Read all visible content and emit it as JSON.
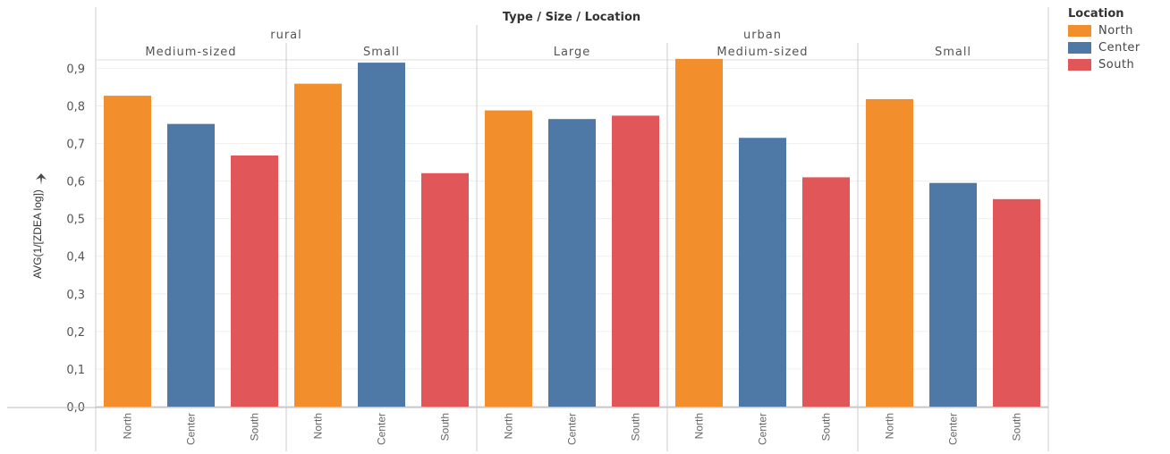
{
  "chart_data": {
    "type": "bar",
    "header_title": "Type / Size / Location",
    "ylabel": "AVG(1/[ZDEA log])",
    "ylabel_icon": "sort-icon",
    "ylim": [
      0,
      0.92
    ],
    "yticks": [
      "0,0",
      "0,1",
      "0,2",
      "0,3",
      "0,4",
      "0,5",
      "0,6",
      "0,7",
      "0,8",
      "0,9"
    ],
    "grid": true,
    "legend": {
      "title": "Location",
      "placement": "right",
      "items": [
        {
          "label": "North",
          "color": "#f28e2b"
        },
        {
          "label": "Center",
          "color": "#4e79a7"
        },
        {
          "label": "South",
          "color": "#e15759"
        }
      ]
    },
    "types": [
      {
        "label": "rural",
        "sizes": [
          {
            "label": "Medium-sized",
            "bars": [
              {
                "label": "North",
                "value": 0.827
              },
              {
                "label": "Center",
                "value": 0.752
              },
              {
                "label": "South",
                "value": 0.668
              }
            ]
          },
          {
            "label": "Small",
            "bars": [
              {
                "label": "North",
                "value": 0.859
              },
              {
                "label": "Center",
                "value": 0.915
              },
              {
                "label": "South",
                "value": 0.621
              }
            ]
          }
        ]
      },
      {
        "label": "urban",
        "sizes": [
          {
            "label": "Large",
            "bars": [
              {
                "label": "North",
                "value": 0.788
              },
              {
                "label": "Center",
                "value": 0.765
              },
              {
                "label": "South",
                "value": 0.774
              }
            ]
          },
          {
            "label": "Medium-sized",
            "bars": [
              {
                "label": "North",
                "value": 0.925
              },
              {
                "label": "Center",
                "value": 0.715
              },
              {
                "label": "South",
                "value": 0.61
              }
            ]
          },
          {
            "label": "Small",
            "bars": [
              {
                "label": "North",
                "value": 0.818
              },
              {
                "label": "Center",
                "value": 0.595
              },
              {
                "label": "South",
                "value": 0.552
              }
            ]
          }
        ]
      }
    ]
  }
}
